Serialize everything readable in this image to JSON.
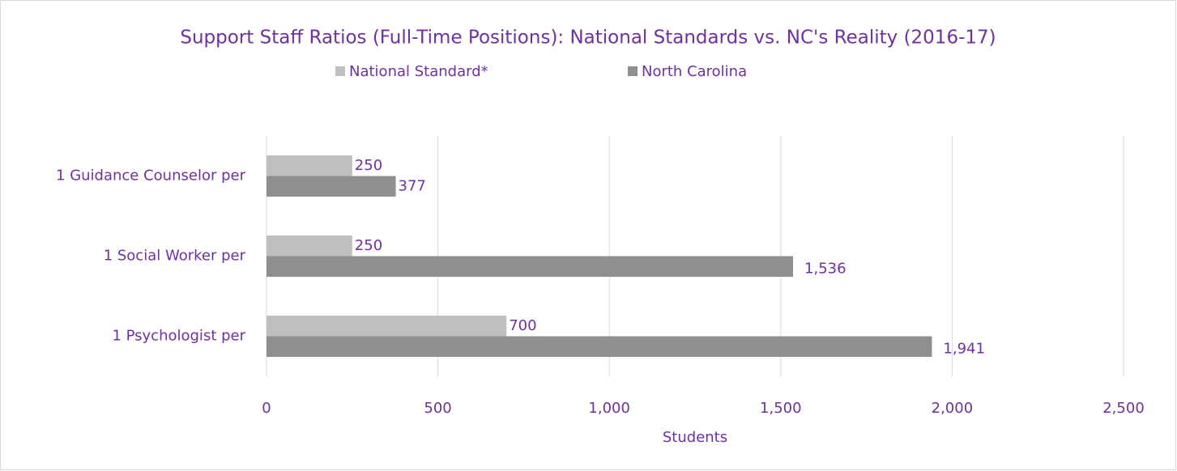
{
  "chart_data": {
    "type": "barh",
    "title": "Support Staff Ratios (Full-Time Positions): National Standards vs. NC's Reality (2016-17)",
    "categories": [
      "1 Guidance Counselor per",
      "1 Social Worker per",
      "1 Psychologist per"
    ],
    "series": [
      {
        "name": "National Standard*",
        "color": "#bfbfbf",
        "values": [
          250,
          250,
          700
        ],
        "value_labels": [
          "250",
          "250",
          "700"
        ]
      },
      {
        "name": "North Carolina",
        "color": "#8f8f8f",
        "values": [
          377,
          1536,
          1941
        ],
        "value_labels": [
          "377",
          "1,536",
          "1,941"
        ]
      }
    ],
    "xlim": [
      0,
      2500
    ],
    "xticks": [
      0,
      500,
      {
        "value": 1000,
        "label": "1,000"
      },
      {
        "value": 1500,
        "label": "1,500"
      },
      {
        "value": 2000,
        "label": "2,000"
      },
      {
        "value": 2500,
        "label": "2,500"
      }
    ],
    "xlabel": "Students",
    "grid": true,
    "legend": "top"
  }
}
